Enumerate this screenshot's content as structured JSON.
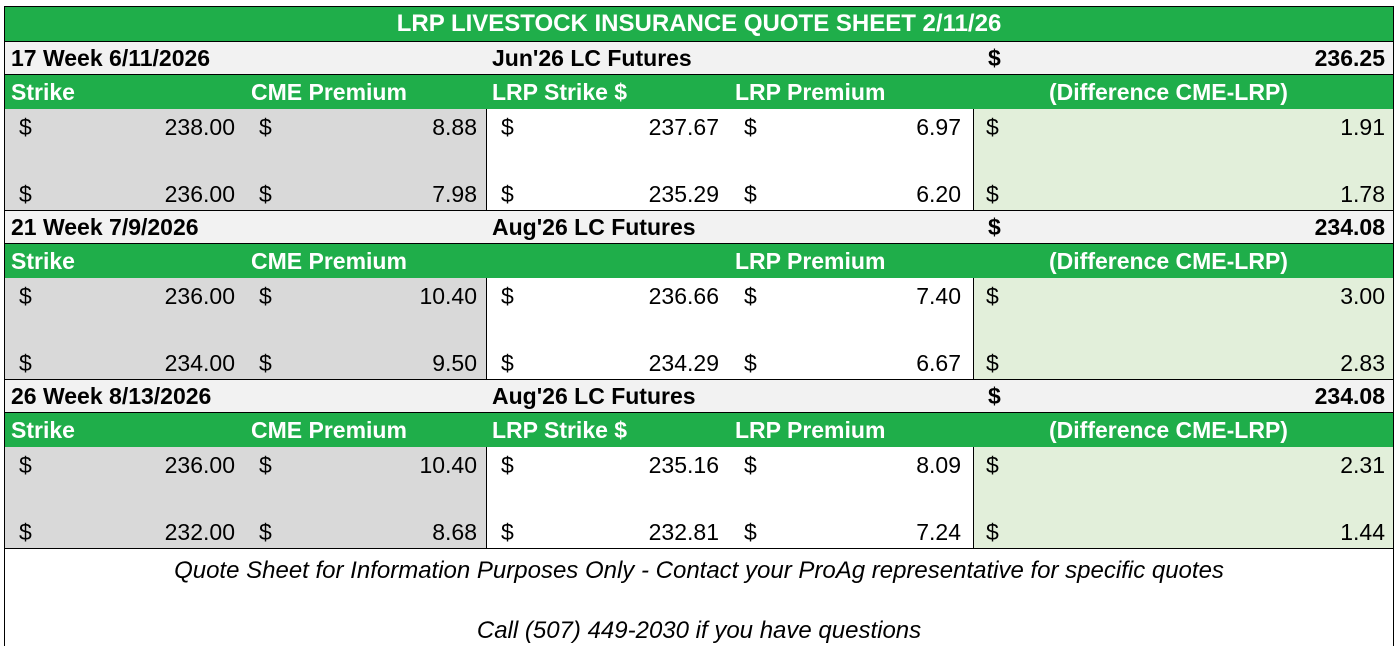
{
  "title": "LRP LIVESTOCK INSURANCE QUOTE SHEET 2/11/26",
  "currency_symbol": "$",
  "blocks": [
    {
      "period": "17 Week 6/11/2026",
      "futures": "Jun'26 LC Futures",
      "futures_price": "236.25",
      "columns": {
        "strike": "Strike",
        "cme_premium": "CME Premium",
        "lrp_strike": "LRP Strike $",
        "lrp_premium": "LRP Premium",
        "difference": "(Difference CME-LRP)"
      },
      "rows": [
        {
          "strike": "238.00",
          "cme_premium": "8.88",
          "lrp_strike": "237.67",
          "lrp_premium": "6.97",
          "difference": "1.91"
        },
        {
          "strike": "236.00",
          "cme_premium": "7.98",
          "lrp_strike": "235.29",
          "lrp_premium": "6.20",
          "difference": "1.78"
        }
      ]
    },
    {
      "period": "21 Week 7/9/2026",
      "futures": "Aug'26 LC Futures",
      "futures_price": "234.08",
      "columns": {
        "strike": "Strike",
        "cme_premium": "CME Premium",
        "lrp_strike": "",
        "lrp_premium": "LRP Premium",
        "difference": "(Difference CME-LRP)"
      },
      "rows": [
        {
          "strike": "236.00",
          "cme_premium": "10.40",
          "lrp_strike": "236.66",
          "lrp_premium": "7.40",
          "difference": "3.00"
        },
        {
          "strike": "234.00",
          "cme_premium": "9.50",
          "lrp_strike": "234.29",
          "lrp_premium": "6.67",
          "difference": "2.83"
        }
      ]
    },
    {
      "period": "26 Week 8/13/2026",
      "futures": "Aug'26 LC Futures",
      "futures_price": "234.08",
      "columns": {
        "strike": "Strike",
        "cme_premium": "CME Premium",
        "lrp_strike": "LRP Strike $",
        "lrp_premium": "LRP Premium",
        "difference": "(Difference CME-LRP)"
      },
      "rows": [
        {
          "strike": "236.00",
          "cme_premium": "10.40",
          "lrp_strike": "235.16",
          "lrp_premium": "8.09",
          "difference": "2.31"
        },
        {
          "strike": "232.00",
          "cme_premium": "8.68",
          "lrp_strike": "232.81",
          "lrp_premium": "7.24",
          "difference": "1.44"
        }
      ]
    }
  ],
  "footer": {
    "disclaimer": "Quote Sheet for Information Purposes Only - Contact your ProAg representative for specific quotes",
    "contact": "Call (507) 449-2030 if you have questions"
  }
}
